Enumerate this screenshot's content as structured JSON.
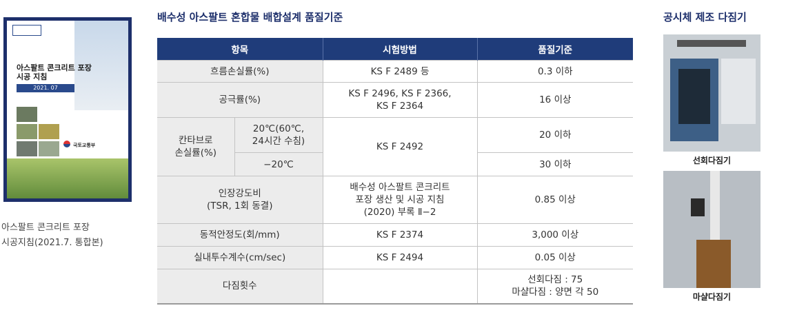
{
  "cover": {
    "title_lines": [
      "아스팔트 콘크리트 포장",
      "시공 지침"
    ],
    "date": "2021. 07",
    "publisher": "국토교통부"
  },
  "caption_lines": [
    "아스팔트 콘크리트 포장",
    "시공지침(2021.7. 통합본)"
  ],
  "table": {
    "title": "배수성 아스팔트 혼합물 배합설계 품질기준",
    "header": [
      "항목",
      "시험방법",
      "품질기준"
    ],
    "rows": [
      [
        [
          "흐름손실률(%)"
        ],
        [
          "KS F 2489 등"
        ],
        [
          "0.3 이하"
        ]
      ],
      [
        [
          "공극률(%)"
        ],
        [
          "KS F 2496, KS F 2366,",
          "KS F 2364"
        ],
        [
          "16 이상"
        ]
      ],
      [
        [
          "칸타브로",
          "손실률(%)"
        ],
        [
          "20℃(60℃,",
          "24시간 수침)"
        ],
        [
          "KS F 2492"
        ],
        [
          "20 이하"
        ]
      ],
      [
        [
          "−20℃"
        ],
        [
          "30 이하"
        ]
      ],
      [
        [
          "인장강도비",
          "(TSR, 1회 동결)"
        ],
        [
          "배수성 아스팔트 콘크리트",
          "포장 생산 및 시공 지침",
          "(2020) 부록 Ⅱ−2"
        ],
        [
          "0.85 이상"
        ]
      ],
      [
        [
          "동적안정도(회/mm)"
        ],
        [
          "KS F 2374"
        ],
        [
          "3,000 이상"
        ]
      ],
      [
        [
          "실내투수계수(cm/sec)"
        ],
        [
          "KS F 2494"
        ],
        [
          "0.05 이상"
        ]
      ],
      [
        [
          "다짐횟수"
        ],
        [
          "선회다짐 : 75",
          "마샬다짐 : 양면 각 50"
        ]
      ]
    ]
  },
  "equipment": {
    "title": "공시체 제조 다짐기",
    "items": [
      "선회다짐기",
      "마샬다짐기"
    ]
  }
}
